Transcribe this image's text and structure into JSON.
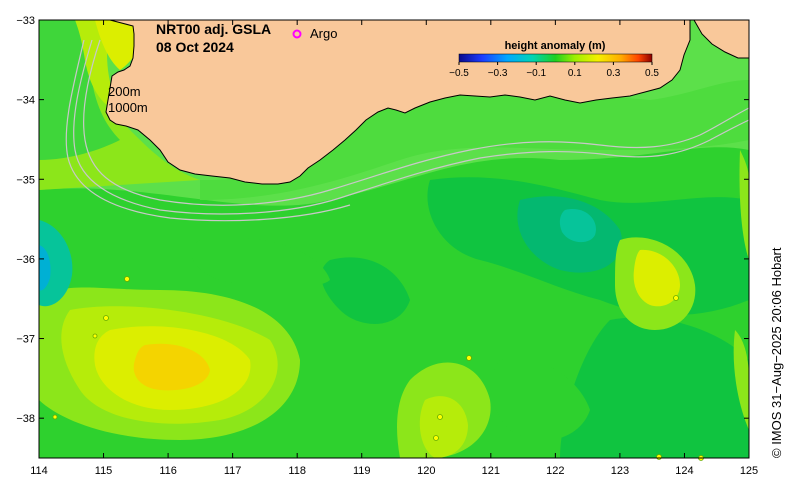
{
  "title": {
    "line1": "NRT00 adj. GSLA",
    "line2": "08 Oct 2024"
  },
  "argo_label": "Argo",
  "contour_labels": [
    "200m",
    "1000m"
  ],
  "colorbar": {
    "title": "height anomaly (m)",
    "ticks": [
      "−0.5",
      "−0.3",
      "−0.1",
      "0.1",
      "0.3",
      "0.5"
    ],
    "min": -0.5,
    "max": 0.5
  },
  "credit": "© IMOS 31−Aug−2025 20:06 Hobart",
  "axes": {
    "x_ticks": [
      "114",
      "115",
      "116",
      "117",
      "118",
      "119",
      "120",
      "121",
      "122",
      "123",
      "124",
      "125"
    ],
    "y_ticks": [
      "−33",
      "−34",
      "−35",
      "−36",
      "−37",
      "−38"
    ],
    "lon_range": [
      114,
      125
    ],
    "lat_range": [
      -38.5,
      -33
    ]
  },
  "colors": {
    "land": "#f9c89a",
    "argo": "#ff00ff",
    "background_anomaly": "#5ce04a"
  }
}
